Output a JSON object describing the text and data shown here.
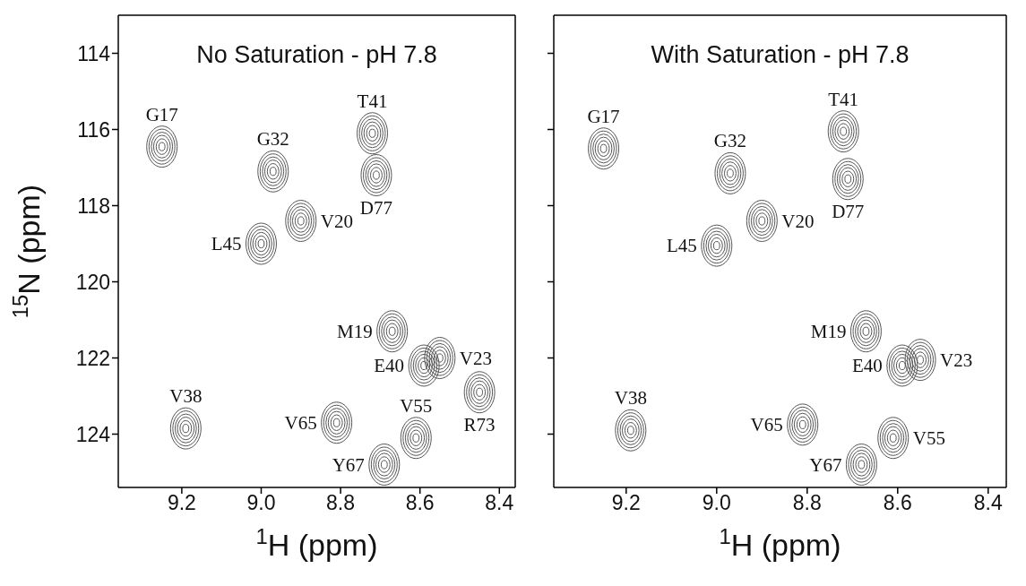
{
  "chart_data": [
    {
      "type": "scatter",
      "title": "No Saturation - pH 7.8",
      "xlabel": "$^{1}$H  (ppm)",
      "ylabel": "$^{15}$N  (ppm)",
      "marker": "circle",
      "grid": false,
      "xlim": [
        9.36,
        8.36
      ],
      "ylim": [
        125.4,
        113
      ],
      "xticks": [
        9.2,
        {
          "value": 9,
          "label": "9.0"
        },
        8.8,
        8.6,
        8.4
      ],
      "yticks": [
        114,
        116,
        118,
        120,
        122,
        124
      ],
      "series": [
        {
          "color": "#555555",
          "x": [
            9.25,
            8.97,
            8.72,
            8.71,
            8.9,
            9.0,
            8.67,
            8.59,
            8.55,
            8.45,
            9.19,
            8.81,
            8.61,
            8.69
          ],
          "values": [
            116.45,
            117.1,
            116.1,
            117.2,
            118.4,
            119.0,
            121.3,
            122.2,
            122.0,
            122.9,
            123.85,
            123.7,
            124.1,
            124.8
          ]
        }
      ],
      "annotations": [
        {
          "text": "G17",
          "x": 9.25,
          "y": 116.45
        },
        {
          "text": "G32",
          "x": 8.97,
          "y": 117.1
        },
        {
          "text": "T41",
          "x": 8.72,
          "y": 116.1
        },
        {
          "text": "D77",
          "x": 8.71,
          "y": 117.2
        },
        {
          "text": "V20",
          "x": 8.9,
          "y": 118.4
        },
        {
          "text": "L45",
          "x": 9.0,
          "y": 119.0
        },
        {
          "text": "M19",
          "x": 8.67,
          "y": 121.3
        },
        {
          "text": "E40",
          "x": 8.59,
          "y": 122.2
        },
        {
          "text": "V23",
          "x": 8.55,
          "y": 122.0
        },
        {
          "text": "R73",
          "x": 8.45,
          "y": 122.9
        },
        {
          "text": "V38",
          "x": 9.19,
          "y": 123.85
        },
        {
          "text": "V65",
          "x": 8.81,
          "y": 123.7
        },
        {
          "text": "V55",
          "x": 8.61,
          "y": 124.1
        },
        {
          "text": "Y67",
          "x": 8.69,
          "y": 124.8
        }
      ]
    },
    {
      "type": "scatter",
      "title": "With Saturation - pH 7.8",
      "xlabel": "$^{1}$H  (ppm)",
      "marker": "circle",
      "grid": false,
      "tick_labels": "x",
      "xlim": [
        9.36,
        8.36
      ],
      "ylim": [
        125.4,
        113
      ],
      "xticks": [
        9.2,
        {
          "value": 9,
          "label": "9.0"
        },
        8.8,
        8.6,
        8.4
      ],
      "yticks": [
        114,
        116,
        118,
        120,
        122,
        124
      ],
      "series": [
        {
          "color": "#555555",
          "x": [
            9.25,
            8.97,
            8.72,
            8.71,
            8.9,
            9.0,
            8.67,
            8.59,
            8.55,
            9.19,
            8.81,
            8.61,
            8.68
          ],
          "values": [
            116.5,
            117.15,
            116.05,
            117.3,
            118.4,
            119.05,
            121.3,
            122.2,
            122.05,
            123.9,
            123.75,
            124.1,
            124.8
          ]
        }
      ],
      "annotations": [
        {
          "text": "G17",
          "x": 9.25,
          "y": 116.5
        },
        {
          "text": "G32",
          "x": 8.97,
          "y": 117.15
        },
        {
          "text": "T41",
          "x": 8.72,
          "y": 116.05
        },
        {
          "text": "D77",
          "x": 8.71,
          "y": 117.3
        },
        {
          "text": "V20",
          "x": 8.9,
          "y": 118.4
        },
        {
          "text": "L45",
          "x": 9.0,
          "y": 119.05
        },
        {
          "text": "M19",
          "x": 8.67,
          "y": 121.3
        },
        {
          "text": "E40",
          "x": 8.59,
          "y": 122.2
        },
        {
          "text": "V23",
          "x": 8.55,
          "y": 122.05
        },
        {
          "text": "V38",
          "x": 9.19,
          "y": 123.9
        },
        {
          "text": "V65",
          "x": 8.81,
          "y": 123.75
        },
        {
          "text": "V55",
          "x": 8.61,
          "y": 124.1
        },
        {
          "text": "Y67",
          "x": 8.68,
          "y": 124.8
        }
      ]
    }
  ]
}
